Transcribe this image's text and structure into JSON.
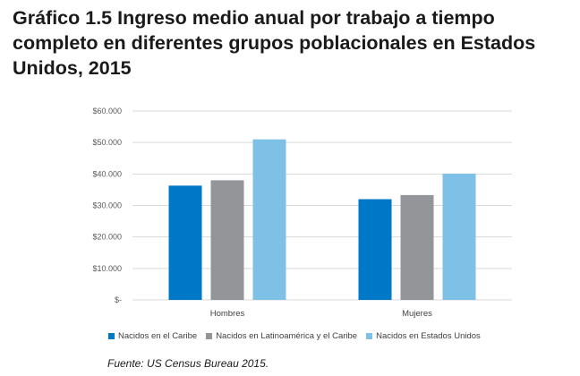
{
  "title": "Gráfico 1.5 Ingreso medio anual por trabajo a tiempo completo en diferentes grupos poblacionales en Estados Unidos, 2015",
  "source": "Fuente: US Census Bureau 2015.",
  "colors": {
    "caribe": "#0078C8",
    "latam": "#939598",
    "usa": "#7FC0E6",
    "grid": "#d9d9d9"
  },
  "chart_data": {
    "type": "bar",
    "title": "Gráfico 1.5 Ingreso medio anual por trabajo a tiempo completo en diferentes grupos poblacionales en Estados Unidos, 2015",
    "categories": [
      "Hombres",
      "Mujeres"
    ],
    "series": [
      {
        "name": "Nacidos en el Caribe",
        "values": [
          36300,
          32000
        ]
      },
      {
        "name": "Nacidos en Latinoamérica y el Caribe",
        "values": [
          38000,
          33300
        ]
      },
      {
        "name": "Nacidos en Estados Unidos",
        "values": [
          51000,
          40100
        ]
      }
    ],
    "ylim": [
      0,
      60000
    ],
    "yticks": [
      0,
      10000,
      20000,
      30000,
      40000,
      50000,
      60000
    ],
    "ytick_labels": [
      "$-",
      "$10.000",
      "$20.000",
      "$30.000",
      "$40.000",
      "$50.000",
      "$60.000"
    ],
    "xlabel": "",
    "ylabel": "",
    "grid": true,
    "legend_position": "bottom"
  }
}
